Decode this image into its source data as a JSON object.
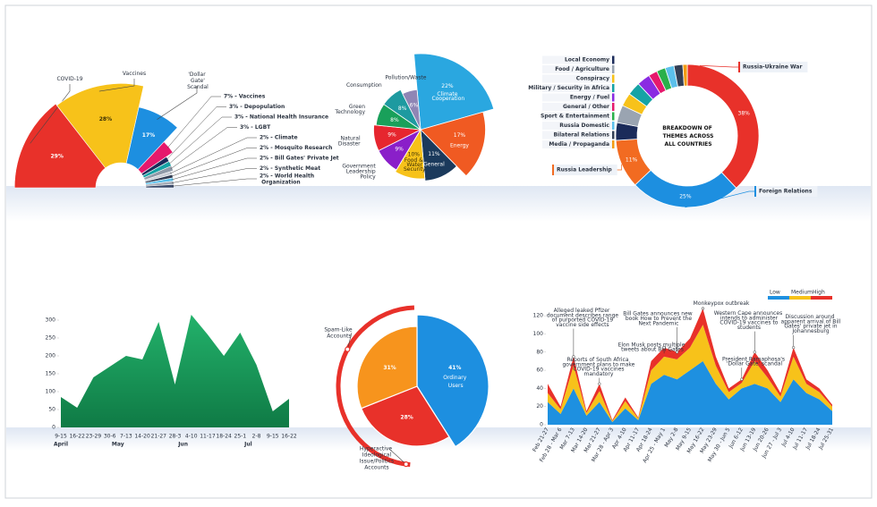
{
  "chart_data": [
    {
      "type": "half-donut",
      "categories": [
        "COVID-19",
        "Vaccines",
        "'Dollar Gate' Scandal",
        "7% - Vaccines",
        "3% - Depopulation",
        "3% - National Health Insurance",
        "3% - LGBT",
        "2% - Climate",
        "2% - Mosquito Research",
        "2% - Bill Gates' Private Jet",
        "2% - Synthetic Meat",
        "2% - World Health Organization"
      ],
      "values": [
        29,
        28,
        17,
        7,
        3,
        3,
        3,
        2,
        2,
        2,
        2,
        2
      ],
      "value_labels": [
        "29%",
        "28%",
        "17%",
        null,
        null,
        null,
        null,
        null,
        null,
        null,
        null,
        null
      ],
      "colors": [
        "#e8312a",
        "#f7c21a",
        "#1d8fe0",
        "#e6196c",
        "#1b2b5a",
        "#16a3a5",
        "#8f9aa8",
        "#c7ccd4",
        "#2f3b52",
        "#5bc0eb",
        "#a3aab5",
        "#3a4a6a"
      ]
    },
    {
      "type": "pie",
      "categories": [
        "Climate Cooperation",
        "Energy",
        "General",
        "Food & Water Security",
        "Government Leadership Policy",
        "Natural Disaster",
        "Green Technology",
        "Consumption",
        "Pollution/Waste"
      ],
      "values": [
        22,
        17,
        11,
        10,
        9,
        9,
        8,
        8,
        6
      ],
      "value_labels": [
        "22%",
        "17%",
        "11%",
        "10%",
        "9%",
        "9%",
        "8%",
        "8%",
        "6%"
      ],
      "colors": [
        "#2aa7e0",
        "#f05a22",
        "#1b3a5c",
        "#f7c21a",
        "#8a1fc9",
        "#e6262f",
        "#19a05a",
        "#1e9aa0",
        "#8f86b5"
      ]
    },
    {
      "type": "donut",
      "title": "BREAKDOWN OF THEMES ACROSS ALL COUNTRIES",
      "categories": [
        "Russia-Ukraine War",
        "Foreign Relations",
        "Russia Leadership",
        "Local Economy",
        "Food / Agriculture",
        "Conspiracy",
        "Military / Security in Africa",
        "Energy / Fuel",
        "General / Other",
        "Sport & Entertainment",
        "Russia Domestic",
        "Bilateral Relations",
        "Media / Propaganda"
      ],
      "values": [
        38,
        25,
        11,
        4,
        4,
        3,
        3,
        3,
        2,
        2,
        2,
        2,
        1
      ],
      "value_labels": [
        "38%",
        "25%",
        "11%",
        null,
        null,
        null,
        null,
        null,
        null,
        null,
        null,
        null,
        null
      ],
      "colors": [
        "#e8312a",
        "#1d8fe0",
        "#f26b21",
        "#1b2b5a",
        "#9aa4b1",
        "#f7c21a",
        "#16a3a5",
        "#8a2be2",
        "#e6196c",
        "#2ab04a",
        "#5bc0eb",
        "#333f55",
        "#f39c12"
      ]
    },
    {
      "type": "area",
      "categories": [
        "9-15",
        "16-22",
        "23-29",
        "30-6",
        "7-13",
        "14-20",
        "21-27",
        "28-3",
        "4-10",
        "11-17",
        "18-24",
        "25-1",
        "2-8",
        "9-15",
        "16-22"
      ],
      "months": [
        "April",
        "May",
        "Jun",
        "Jul"
      ],
      "values": [
        85,
        55,
        140,
        170,
        200,
        190,
        295,
        120,
        315,
        260,
        200,
        265,
        175,
        45,
        80
      ],
      "color": "#1a9e5c",
      "ylim": [
        0,
        300
      ],
      "yticks": [
        0,
        50,
        100,
        150,
        200,
        250,
        300
      ]
    },
    {
      "type": "pie",
      "categories": [
        "Ordinary Users",
        "Hyperactive Ideological Issue/Politics Accounts",
        "Spam-Like Accounts"
      ],
      "values": [
        41,
        28,
        31
      ],
      "value_labels": [
        "41%",
        "28%",
        "31%"
      ],
      "colors": [
        "#1d8fe0",
        "#e8312a",
        "#f7941d"
      ]
    },
    {
      "type": "stacked-area",
      "categories": [
        "Feb 21-27",
        "Feb 28 - Mar 6",
        "Mar 7-13",
        "Mar 14-20",
        "Mar 21-27",
        "Mar 28 - Apr 3",
        "Apr 4-10",
        "Apr 11-17",
        "Apr 18-24",
        "Apr 25 - May 1",
        "May 2-8",
        "May 9-15",
        "May 16-22",
        "May 23-29",
        "May 30 - Jun 5",
        "Jun 6-12",
        "Jun 13-19",
        "Jun 20-26",
        "Jun 27 - Jul 3",
        "Jul 4-10",
        "Jul 11-17",
        "Jul 18-24",
        "Jul 25-31"
      ],
      "series": [
        {
          "name": "Low",
          "color": "#1e90e0",
          "values": [
            25,
            12,
            40,
            10,
            25,
            3,
            18,
            5,
            45,
            55,
            50,
            60,
            70,
            45,
            28,
            40,
            45,
            40,
            25,
            50,
            35,
            28,
            15
          ]
        },
        {
          "name": "Medium",
          "color": "#f7c21a",
          "values": [
            10,
            5,
            25,
            3,
            12,
            1,
            8,
            2,
            15,
            20,
            22,
            25,
            40,
            20,
            8,
            6,
            25,
            12,
            6,
            25,
            10,
            8,
            5
          ]
        },
        {
          "name": "High",
          "color": "#e8312a",
          "values": [
            10,
            3,
            10,
            2,
            8,
            1,
            4,
            1,
            10,
            10,
            8,
            10,
            18,
            10,
            4,
            4,
            10,
            8,
            4,
            10,
            5,
            4,
            2
          ]
        }
      ],
      "ylim": [
        0,
        130
      ],
      "yticks": [
        0,
        20,
        40,
        60,
        80,
        100,
        120
      ],
      "annotations": [
        "Alleged leaked Pfizer document describes range of purported COVID-19 vaccine side effects",
        "Reports of South Africa government plans to make COVID-19 vaccines mandatory",
        "Elon Musk posts multiple tweets about Bill Gates",
        "Bill Gates announces new book How to Prevent the Next Pandemic",
        "Monkeypox outbreak",
        "Western Cape announces intends to administer COVID-19 vaccines to students",
        "President Ramaphosa's 'Dollar Gate' scandal",
        "Discussion around apparent arrival of Bill Gates' private jet in Johannesburg"
      ]
    }
  ]
}
